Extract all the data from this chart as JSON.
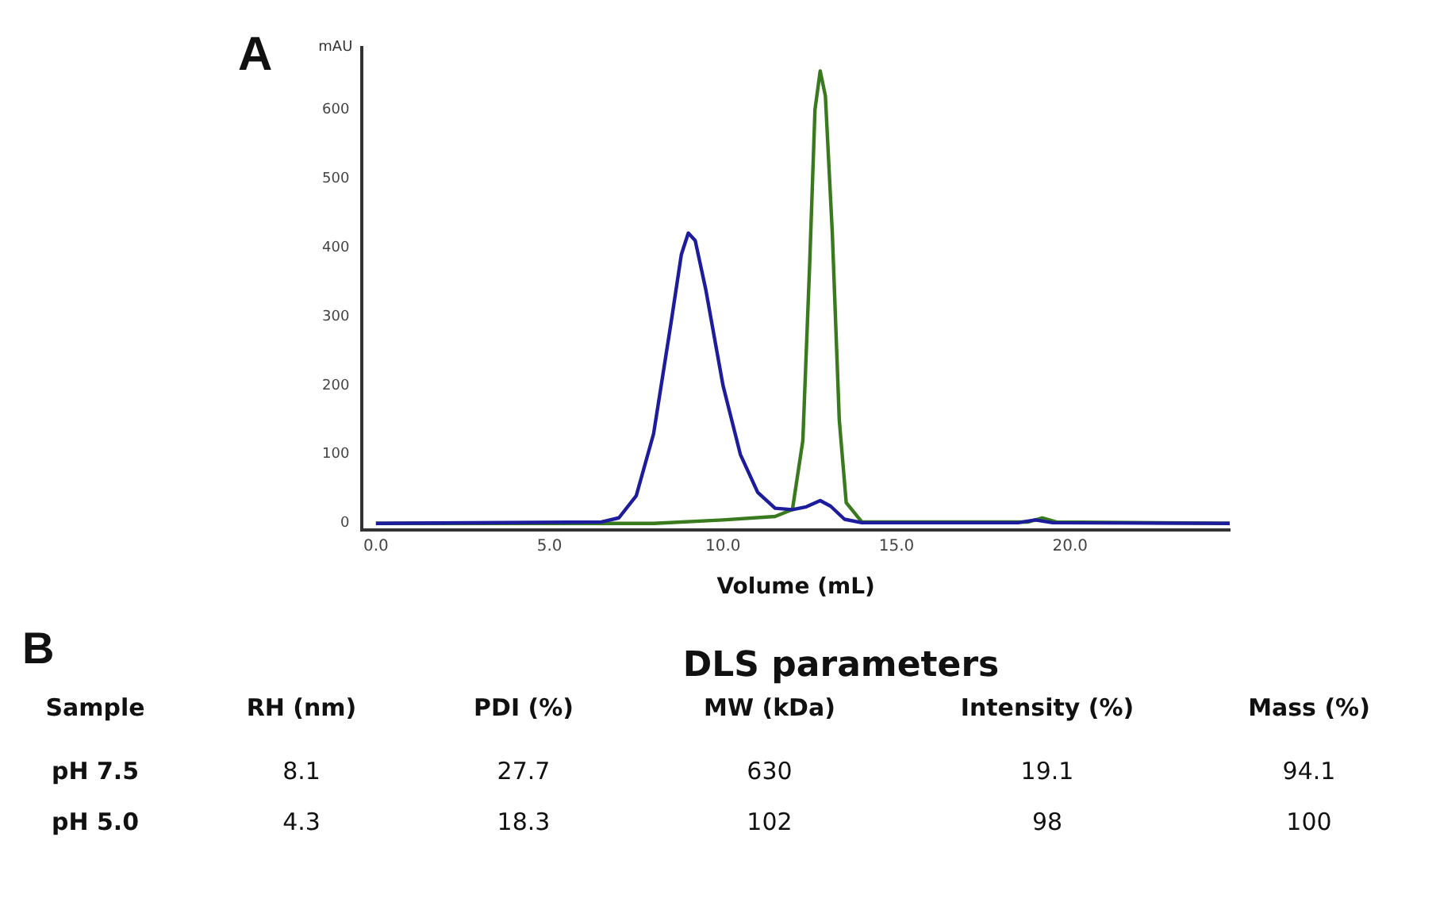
{
  "chart_data": [
    {
      "type": "line",
      "title": "A",
      "xlabel": "Volume (mL)",
      "ylabel": "mAU",
      "xlim": [
        -0.4,
        24.6
      ],
      "xticks": [
        {
          "value": 0,
          "label": "0.0"
        },
        {
          "value": 5,
          "label": "5.0"
        },
        {
          "value": 10,
          "label": "10.0"
        },
        {
          "value": 15,
          "label": "15.0"
        },
        {
          "value": 20,
          "label": "20.0"
        }
      ],
      "ylim": [
        -10,
        690
      ],
      "yticks": [
        0,
        100,
        200,
        300,
        400,
        500,
        600
      ],
      "series": [
        {
          "color": "#1c1c9c",
          "x": [
            0,
            6.5,
            7.0,
            7.5,
            8.0,
            8.5,
            8.8,
            9.0,
            9.2,
            9.5,
            10.0,
            10.5,
            11.0,
            11.5,
            12.0,
            12.4,
            12.8,
            13.1,
            13.5,
            14.0,
            18.5,
            19.0,
            19.5,
            24.6
          ],
          "values": [
            0,
            2,
            8,
            40,
            130,
            290,
            390,
            421,
            410,
            340,
            200,
            100,
            45,
            22,
            20,
            24,
            33,
            25,
            6,
            1,
            1,
            5,
            1,
            0
          ]
        },
        {
          "color": "#3a7a1e",
          "x": [
            0,
            8,
            10,
            11.5,
            12.0,
            12.3,
            12.5,
            12.65,
            12.8,
            12.95,
            13.15,
            13.35,
            13.55,
            14.0,
            18.8,
            19.2,
            19.6,
            24.6
          ],
          "values": [
            0,
            0,
            5,
            10,
            20,
            120,
            380,
            600,
            656,
            620,
            420,
            150,
            30,
            2,
            2,
            8,
            2,
            0
          ]
        }
      ],
      "grid": false,
      "legend": false,
      "marker": "none",
      "line_style": "solid"
    },
    {
      "type": "other",
      "title": "DLS parameters",
      "annotations": [
        "B"
      ],
      "ylabel": "Sample",
      "categories": [
        "RH (nm)",
        "PDI (%)",
        "MW (kDa)",
        "Intensity (%)",
        "Mass (%)"
      ],
      "y_categories": [
        "pH 7.5",
        "pH 5.0"
      ],
      "cell_labels": [
        [
          "8.1",
          "27.7",
          "630",
          "19.1",
          "94.1"
        ],
        [
          "4.3",
          "18.3",
          "102",
          "98",
          "100"
        ]
      ]
    }
  ]
}
